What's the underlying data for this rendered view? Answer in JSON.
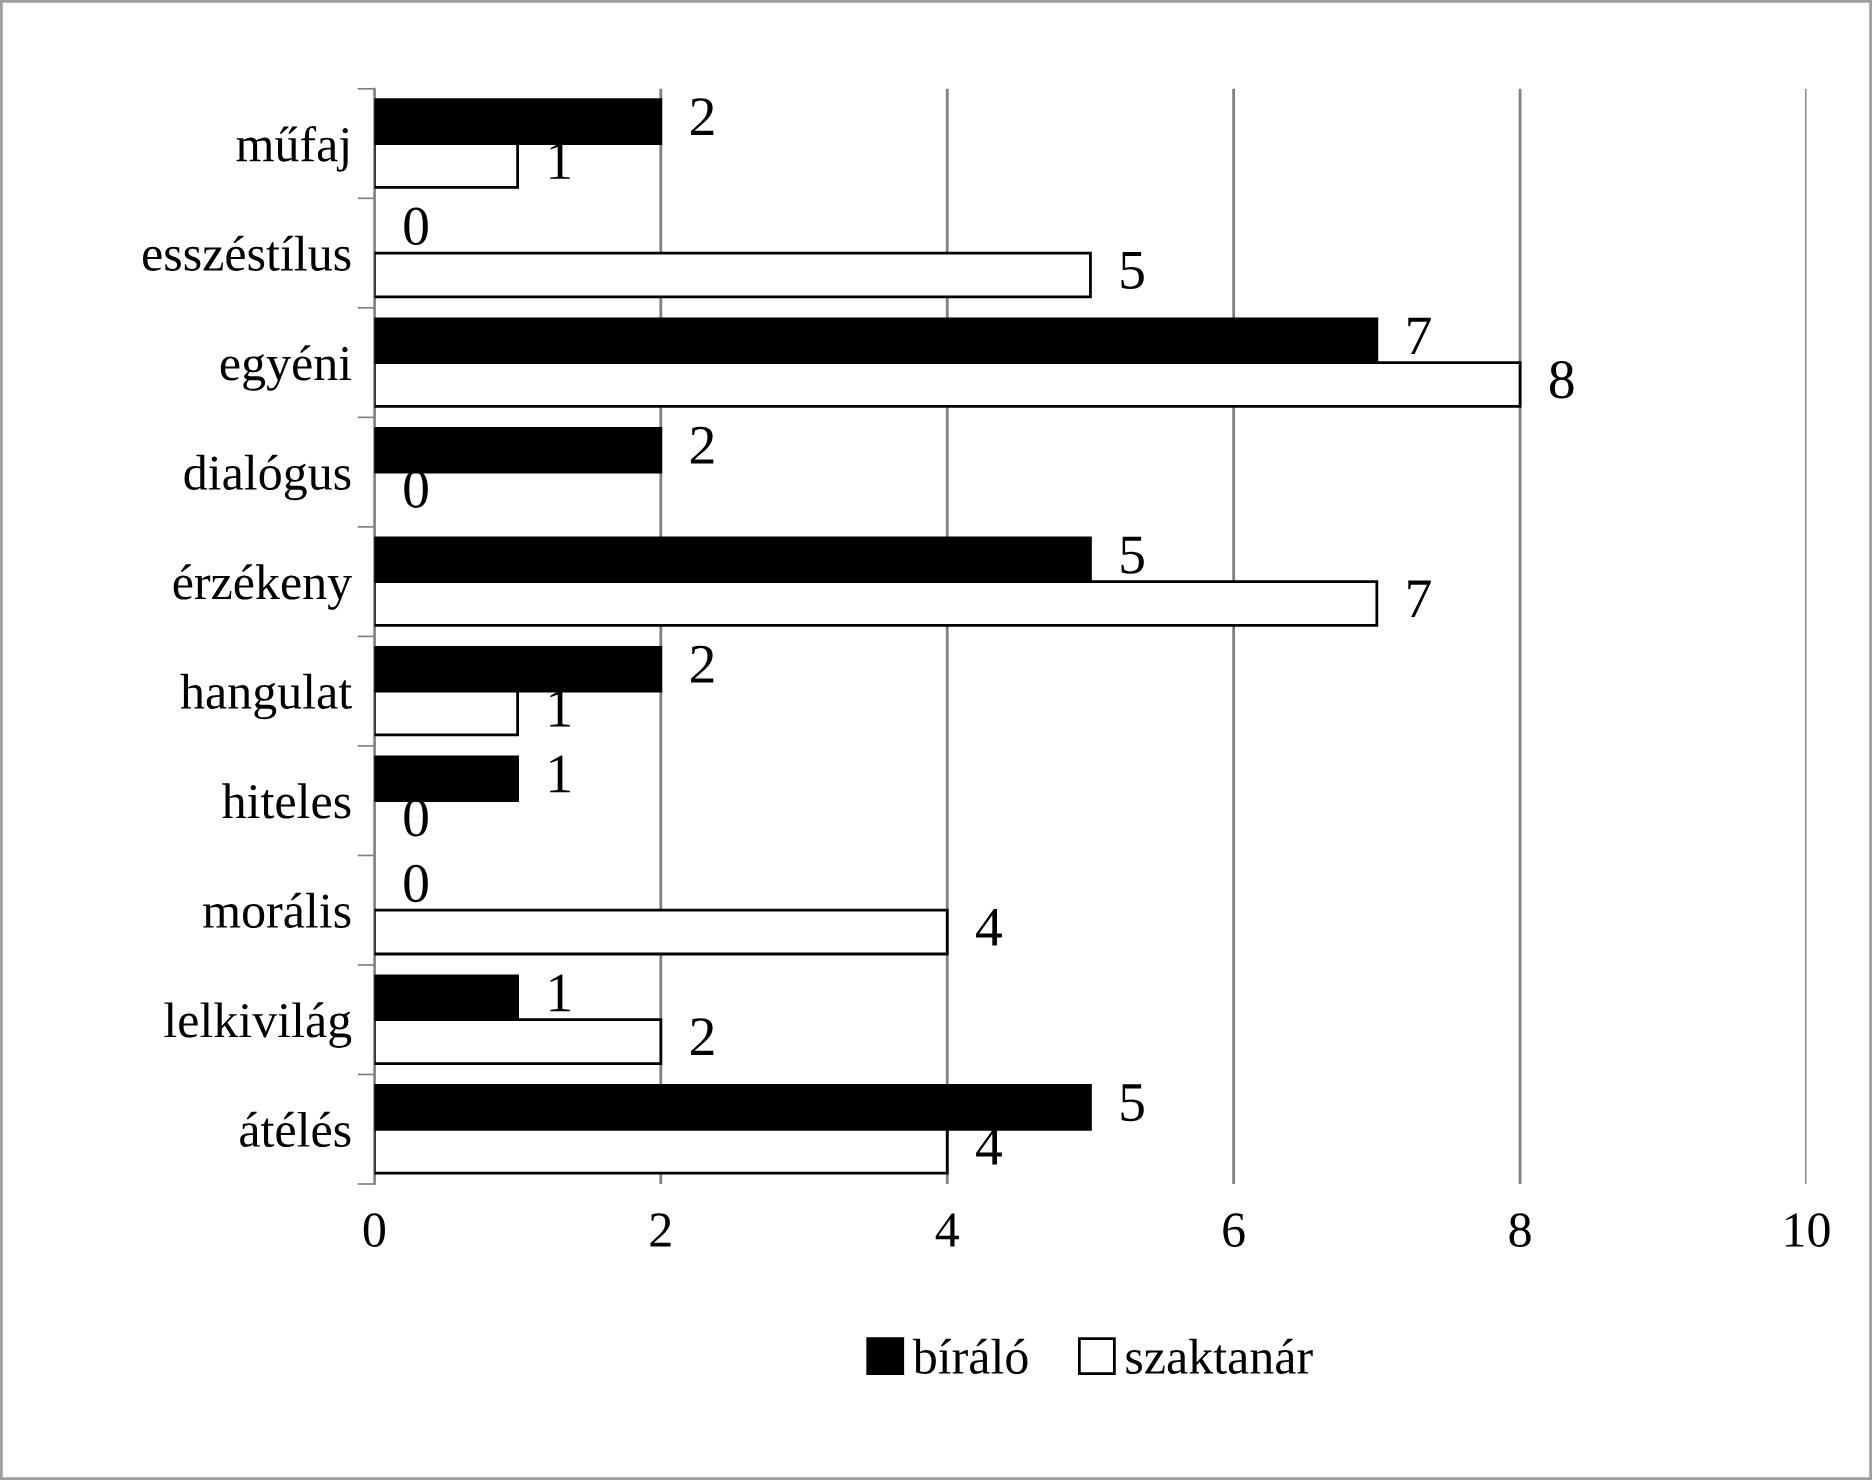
{
  "chart_data": {
    "type": "bar",
    "orientation": "horizontal",
    "categories": [
      "műfaj",
      "esszéstílus",
      "egyéni",
      "dialógus",
      "érzékeny",
      "hangulat",
      "hiteles",
      "morális",
      "lelkivilág",
      "átélés"
    ],
    "series": [
      {
        "name": "bíráló",
        "color": "#000000",
        "values": [
          2,
          0,
          7,
          2,
          5,
          2,
          1,
          0,
          1,
          5
        ]
      },
      {
        "name": "szaktanár",
        "color": "#ffffff",
        "values": [
          1,
          5,
          8,
          0,
          7,
          1,
          0,
          4,
          2,
          4
        ]
      }
    ],
    "xlim": [
      0,
      10
    ],
    "xticks": [
      0,
      2,
      4,
      6,
      8,
      10
    ],
    "grid": "x",
    "legend": "bottom",
    "data_labels": true
  }
}
